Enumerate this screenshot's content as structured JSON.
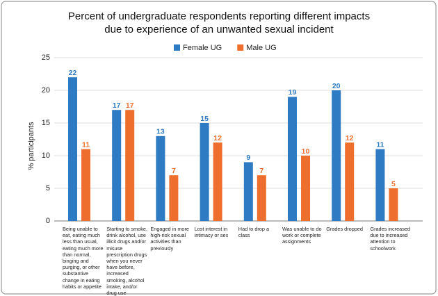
{
  "chart_data": {
    "type": "bar",
    "title": "Percent of undergraduate respondents reporting different impacts due to experience of an unwanted sexual incident",
    "y_label": "% participants",
    "categories": [
      "Being unable to eat, eating much less than usual, eating much more than normal, binging and purging, or other substantive change in eating habits or appetite",
      "Starting to smoke, drink alcohol, use illicit drugs and/or misuse prescription drugs when you never have before, increased smoking, alcohol intake, and/or drug use",
      "Engaged in more high-risk sexual activities than previously",
      "Lost interest in intimacy or sex",
      "Had to drop a class",
      "Was unable to do work or complete assignments",
      "Grades dropped",
      "Grades increased due to increased attention to schoolwork"
    ],
    "series": [
      {
        "name": "Female UG",
        "color": "#2e7bc4",
        "values": [
          22,
          17,
          13,
          15,
          9,
          19,
          20,
          11
        ]
      },
      {
        "name": "Male UG",
        "color": "#ee6f2d",
        "values": [
          11,
          17,
          7,
          12,
          7,
          10,
          12,
          5
        ]
      }
    ],
    "ylim": [
      0,
      25
    ],
    "yticks": [
      0,
      5,
      10,
      15,
      20,
      25
    ],
    "grid": true,
    "legend": "top"
  }
}
